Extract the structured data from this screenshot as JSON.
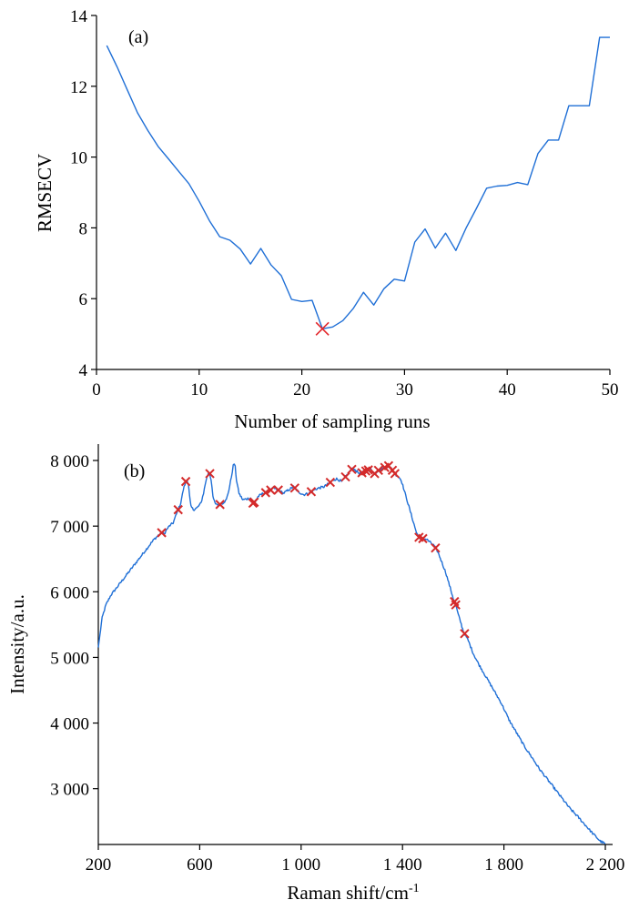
{
  "chart_data": [
    {
      "type": "line",
      "panel_label": "(a)",
      "xlabel": "Number of sampling runs",
      "ylabel": "RMSECV",
      "xlim": [
        0,
        50
      ],
      "ylim": [
        4,
        14
      ],
      "x_ticks": [
        0,
        10,
        20,
        30,
        40,
        50
      ],
      "x_tick_labels": [
        "0",
        "10",
        "20",
        "30",
        "40",
        "50"
      ],
      "y_ticks": [
        4,
        6,
        8,
        10,
        12,
        14
      ],
      "y_tick_labels": [
        "4",
        "6",
        "8",
        "10",
        "12",
        "14"
      ],
      "grid": false,
      "line_color": "#1f6fd6",
      "marker_color": "#e3262b",
      "series": [
        {
          "x": [
            1,
            2,
            3,
            4,
            5,
            6,
            7,
            8,
            9,
            10,
            11,
            12,
            13,
            14,
            15,
            16,
            17,
            18,
            19,
            20,
            21,
            22,
            23,
            24,
            25,
            26,
            27,
            28,
            29,
            30,
            31,
            32,
            33,
            34,
            35,
            36,
            37,
            38,
            39,
            40,
            41,
            42,
            43,
            44,
            45,
            46,
            47,
            48,
            49,
            50
          ],
          "y": [
            13.15,
            12.55,
            11.9,
            11.25,
            10.75,
            10.3,
            9.95,
            9.6,
            9.25,
            8.75,
            8.2,
            7.75,
            7.65,
            7.4,
            6.98,
            7.42,
            6.95,
            6.65,
            5.98,
            5.92,
            5.95,
            5.15,
            5.2,
            5.38,
            5.72,
            6.18,
            5.82,
            6.28,
            6.55,
            6.5,
            7.6,
            7.97,
            7.43,
            7.85,
            7.36,
            8.0,
            8.55,
            9.12,
            9.18,
            9.2,
            9.28,
            9.22,
            10.1,
            10.48,
            10.48,
            11.45,
            11.45,
            11.45,
            13.38,
            13.38
          ]
        }
      ],
      "highlight": {
        "x": 22,
        "y": 5.15
      }
    },
    {
      "type": "line",
      "panel_label": "(b)",
      "xlabel": "Raman shift/cm",
      "xlabel_superscript": "-1",
      "ylabel": "Intensity/a.u.",
      "xlim": [
        200,
        2200
      ],
      "ylim": [
        2150,
        8250
      ],
      "x_ticks": [
        200,
        600,
        1000,
        1400,
        1800,
        2200
      ],
      "x_tick_labels": [
        "200",
        "600",
        "1 000",
        "1 400",
        "1 800",
        "2 200"
      ],
      "y_ticks": [
        3000,
        4000,
        5000,
        6000,
        7000,
        8000
      ],
      "y_tick_labels": [
        "3 000",
        "4 000",
        "5 000",
        "6 000",
        "7 000",
        "8 000"
      ],
      "grid": false,
      "line_color": "#1f6fd6",
      "marker_color": "#d42a2a",
      "series": [
        {
          "x": [
            200,
            215,
            230,
            250,
            270,
            300,
            330,
            360,
            390,
            420,
            440,
            450,
            460,
            470,
            480,
            495,
            505,
            515,
            525,
            535,
            545,
            550,
            555,
            560,
            565,
            575,
            590,
            605,
            615,
            625,
            635,
            640,
            645,
            652,
            660,
            675,
            690,
            705,
            715,
            725,
            732,
            736,
            740,
            745,
            755,
            770,
            790,
            800,
            810,
            820,
            830,
            850,
            870,
            890,
            910,
            930,
            950,
            970,
            990,
            1010,
            1030,
            1050,
            1070,
            1090,
            1110,
            1125,
            1140,
            1160,
            1175,
            1185,
            1195,
            1205,
            1215,
            1230,
            1245,
            1260,
            1275,
            1290,
            1305,
            1320,
            1335,
            1345,
            1355,
            1365,
            1375,
            1385,
            1395,
            1410,
            1425,
            1440,
            1455,
            1465,
            1480,
            1495,
            1510,
            1525,
            1540,
            1555,
            1570,
            1585,
            1600,
            1610,
            1620,
            1640,
            1660,
            1680,
            1700,
            1730,
            1760,
            1790,
            1820,
            1850,
            1880,
            1910,
            1940,
            1970,
            2000,
            2030,
            2060,
            2090,
            2120,
            2150,
            2180,
            2200
          ],
          "y": [
            5150,
            5600,
            5800,
            5950,
            6050,
            6200,
            6350,
            6500,
            6650,
            6800,
            6870,
            6900,
            6880,
            6950,
            7000,
            7050,
            7150,
            7250,
            7350,
            7550,
            7680,
            7700,
            7650,
            7450,
            7300,
            7250,
            7280,
            7350,
            7500,
            7700,
            7820,
            7800,
            7700,
            7450,
            7350,
            7320,
            7350,
            7400,
            7550,
            7750,
            7920,
            7950,
            7900,
            7700,
            7500,
            7400,
            7420,
            7430,
            7350,
            7380,
            7450,
            7500,
            7520,
            7580,
            7550,
            7500,
            7550,
            7600,
            7520,
            7480,
            7500,
            7550,
            7580,
            7600,
            7650,
            7700,
            7720,
            7680,
            7750,
            7800,
            7850,
            7880,
            7850,
            7800,
            7820,
            7850,
            7870,
            7800,
            7850,
            7880,
            7900,
            7920,
            7880,
            7820,
            7780,
            7750,
            7700,
            7500,
            7300,
            7100,
            6900,
            6830,
            6810,
            6800,
            6750,
            6700,
            6600,
            6450,
            6300,
            6100,
            5900,
            5800,
            5650,
            5400,
            5250,
            5050,
            4900,
            4700,
            4500,
            4300,
            4050,
            3850,
            3650,
            3480,
            3300,
            3150,
            3000,
            2850,
            2700,
            2580,
            2450,
            2320,
            2200,
            2160
          ]
        }
      ],
      "highlight_x": [
        450,
        515,
        545,
        640,
        680,
        810,
        815,
        860,
        880,
        910,
        975,
        1040,
        1115,
        1175,
        1200,
        1240,
        1255,
        1265,
        1290,
        1305,
        1330,
        1345,
        1360,
        1370,
        1465,
        1480,
        1530,
        1605,
        1610,
        1645
      ]
    }
  ]
}
